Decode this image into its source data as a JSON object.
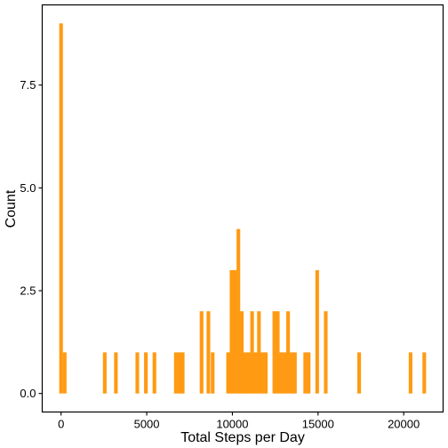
{
  "chart_data": {
    "type": "bar",
    "title": "",
    "xlabel": "Total Steps per Day",
    "ylabel": "Count",
    "xlim": [
      -1100,
      22300
    ],
    "ylim": [
      -0.45,
      9.45
    ],
    "bin_width": 213,
    "x_ticks": [
      {
        "value": 0,
        "label": "0"
      },
      {
        "value": 5000,
        "label": "5000"
      },
      {
        "value": 10000,
        "label": "10000"
      },
      {
        "value": 15000,
        "label": "15000"
      },
      {
        "value": 20000,
        "label": "20000"
      }
    ],
    "y_ticks": [
      {
        "value": 0,
        "label": "0.0"
      },
      {
        "value": 2.5,
        "label": "2.5"
      },
      {
        "value": 5,
        "label": "5.0"
      },
      {
        "value": 7.5,
        "label": "7.5"
      }
    ],
    "x": [
      0,
      213,
      2550,
      3200,
      4450,
      4950,
      5450,
      6700,
      6900,
      7100,
      8200,
      8600,
      8850,
      9750,
      9950,
      10150,
      10350,
      10550,
      10750,
      10950,
      11150,
      11350,
      11550,
      11750,
      11950,
      12450,
      12650,
      12850,
      13050,
      13250,
      13450,
      13650,
      14250,
      14450,
      14950,
      15450,
      17400,
      20400,
      21200
    ],
    "values": [
      9,
      1,
      1,
      1,
      1,
      1,
      1,
      1,
      1,
      1,
      2,
      2,
      1,
      1,
      3,
      3,
      4,
      2,
      1,
      1,
      2,
      1,
      2,
      1,
      1,
      2,
      2,
      1,
      1,
      2,
      1,
      1,
      1,
      1,
      3,
      2,
      1,
      1,
      1
    ],
    "grid": false,
    "bar_color": "#FF9A12",
    "axis_color": "#000000"
  }
}
